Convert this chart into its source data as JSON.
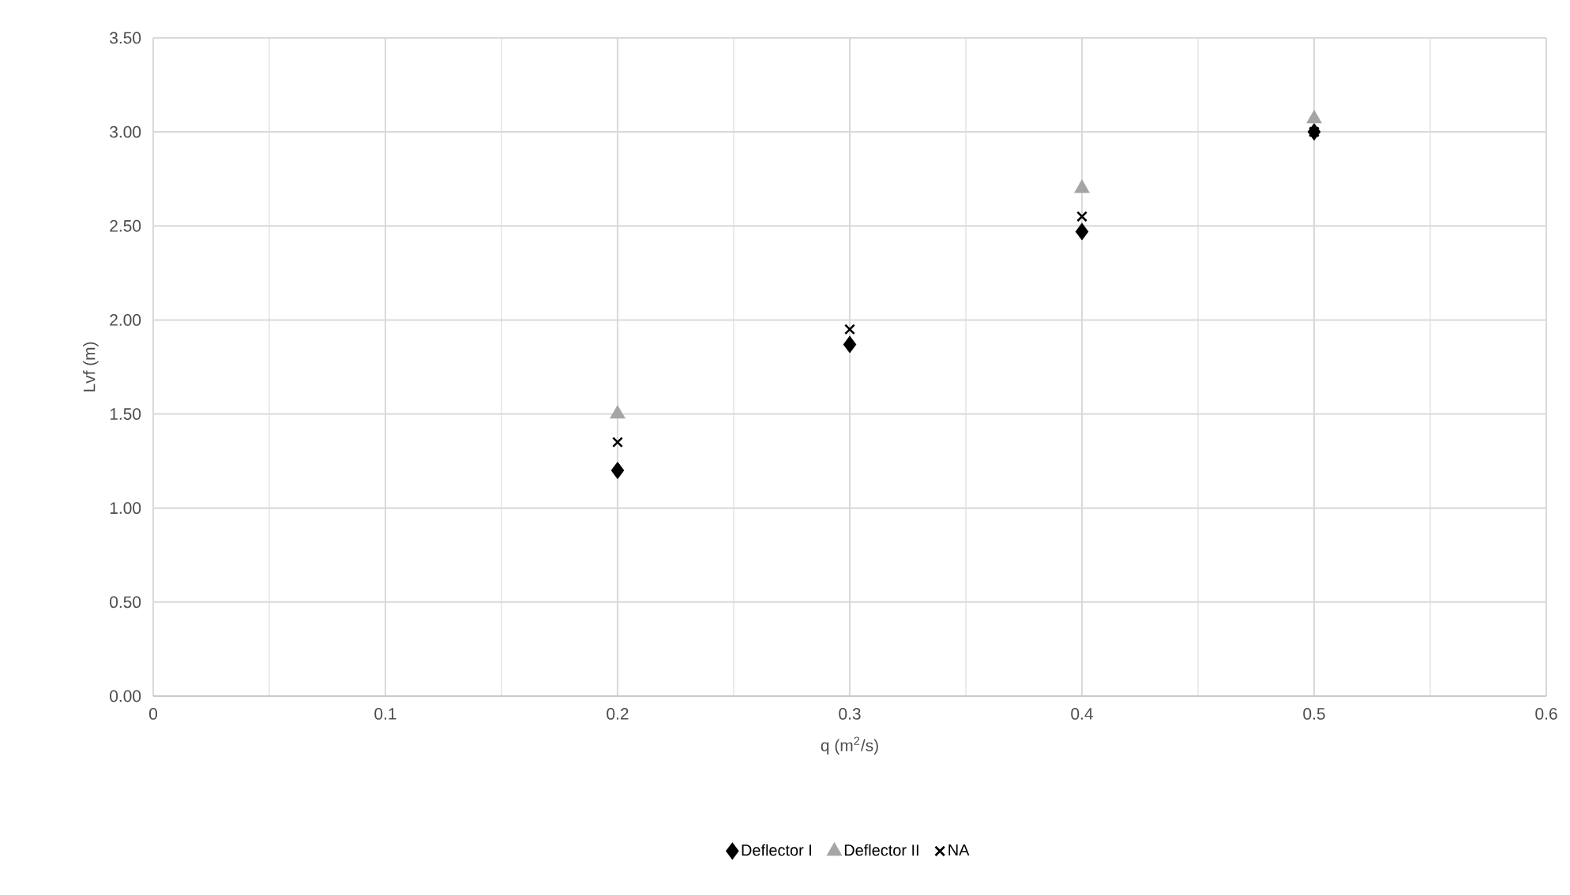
{
  "chart_data": {
    "type": "scatter",
    "xlabel": "q (m$^{2}$/s)",
    "ylabel": "Lvf (m)",
    "x": [
      0.2,
      0.3,
      0.4,
      0.5
    ],
    "series": [
      {
        "name": "Deflector I",
        "color": "#000000",
        "marker": "diamond",
        "values": [
          1.2,
          1.87,
          2.47,
          3.0
        ]
      },
      {
        "name": "Deflector II",
        "color": "#a5a5a5",
        "marker": "triangle",
        "values": [
          1.5,
          null,
          2.7,
          3.07
        ]
      },
      {
        "name": "NA",
        "color": "#000000",
        "marker": "cross",
        "values": [
          1.35,
          1.95,
          2.55,
          3.0
        ]
      }
    ],
    "xlim": [
      0,
      0.6
    ],
    "xticks": [
      0,
      0.1,
      0.2,
      0.3,
      0.4,
      0.5,
      0.6
    ],
    "ylim": [
      0,
      3.5
    ],
    "yticks": [
      {
        "value": 0,
        "label": "0.00"
      },
      {
        "value": 0.5,
        "label": "0.50"
      },
      {
        "value": 1,
        "label": "1.00"
      },
      {
        "value": 1.5,
        "label": "1.50"
      },
      {
        "value": 2,
        "label": "2.00"
      },
      {
        "value": 2.5,
        "label": "2.50"
      },
      {
        "value": 3,
        "label": "3.00"
      },
      {
        "value": 3.5,
        "label": "3.50"
      }
    ],
    "grid": true,
    "legend": "bottom"
  }
}
